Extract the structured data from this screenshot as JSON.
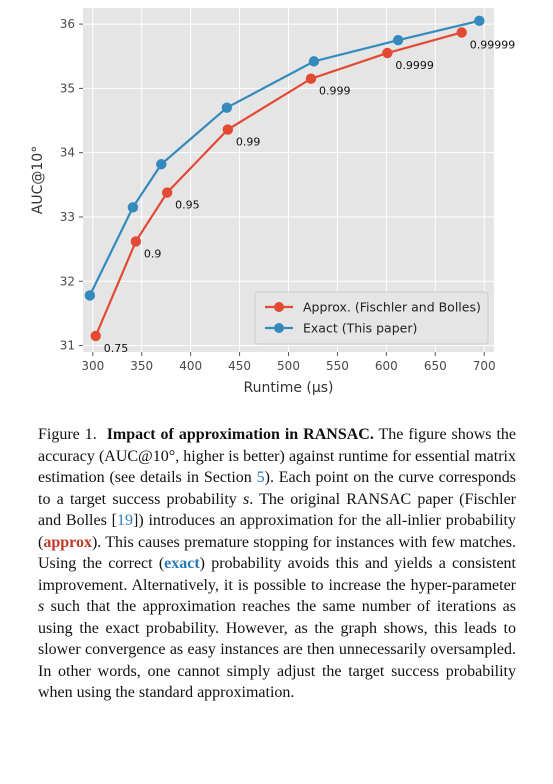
{
  "chart_data": {
    "type": "line",
    "xlabel": "Runtime (μs)",
    "ylabel": "AUC@10°",
    "xlim": [
      290,
      710
    ],
    "ylim": [
      30.9,
      36.25
    ],
    "xticks": [
      300,
      350,
      400,
      450,
      500,
      550,
      600,
      650,
      700
    ],
    "yticks": [
      31,
      32,
      33,
      34,
      35,
      36
    ],
    "grid": true,
    "legend_position": "bottom-right",
    "series": [
      {
        "name": "Approx. (Fischler and Bolles)",
        "color": "#e24a33",
        "x": [
          303,
          344,
          376,
          438,
          523,
          601,
          677
        ],
        "y": [
          31.15,
          32.62,
          33.38,
          34.36,
          35.15,
          35.55,
          35.87
        ],
        "labels": [
          "0.75",
          "0.9",
          "0.95",
          "0.99",
          "0.999",
          "0.9999",
          "0.99999"
        ]
      },
      {
        "name": "Exact (This paper)",
        "color": "#348abd",
        "x": [
          297,
          341,
          370,
          437,
          526,
          612,
          695
        ],
        "y": [
          31.78,
          33.15,
          33.82,
          34.7,
          35.42,
          35.75,
          36.05
        ]
      }
    ]
  },
  "caption": {
    "figure_label": "Figure 1.",
    "title": "Impact of approximation in RANSAC.",
    "text_1": " The figure shows the accuracy (AUC@10°, higher is better) against runtime for essential matrix estimation (see details in Section ",
    "section_ref": "5",
    "text_2": "). Each point on the curve corresponds to a target success probability ",
    "var_s": "s",
    "text_3": ". The original RANSAC paper (Fischler and Bolles [",
    "cite_ref": "19",
    "text_4": "]) introduces an approximation for the all-inlier probability (",
    "approx_word": "approx",
    "text_5": "). This causes premature stopping for instances with few matches. Using the correct (",
    "exact_word": "exact",
    "text_6": ") probability avoids this and yields a consistent improvement. Alternatively, it is possible to increase the hyper-parameter ",
    "var_s2": "s",
    "text_7": " such that the approximation reaches the same number of iterations as using the exact probability. However, as the graph shows, this leads to slower convergence as easy instances are then unnecessarily oversampled. In other words, one cannot simply adjust the target success probability when using the standard approximation."
  }
}
